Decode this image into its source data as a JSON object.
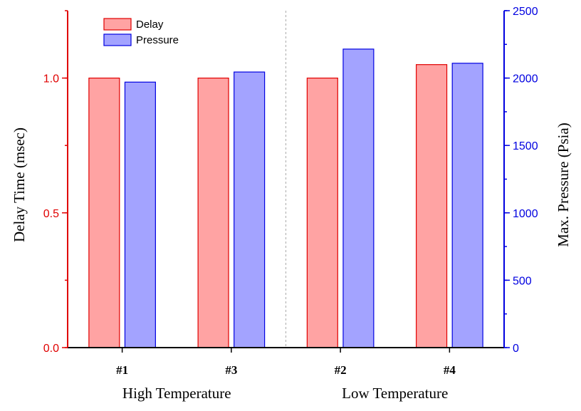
{
  "chart_data": {
    "type": "bar",
    "categories": [
      "#1",
      "#3",
      "#2",
      "#4"
    ],
    "groups": [
      {
        "label": "High Temperature",
        "categories": [
          "#1",
          "#3"
        ]
      },
      {
        "label": "Low Temperature",
        "categories": [
          "#2",
          "#4"
        ]
      }
    ],
    "series": [
      {
        "name": "Delay",
        "axis": "left",
        "values": [
          1.0,
          1.0,
          1.0,
          1.05
        ],
        "fill": "#ffa3a3",
        "stroke": "#e00000"
      },
      {
        "name": "Pressure",
        "axis": "right",
        "values": [
          1970,
          2045,
          2215,
          2110
        ],
        "fill": "#a3a3ff",
        "stroke": "#0000e0"
      }
    ],
    "left_axis": {
      "label": "Delay Time (msec)",
      "ylim": [
        0,
        1.25
      ],
      "ticks": [
        "0.0",
        "0.5",
        "1.0"
      ],
      "tick_values": [
        0,
        0.5,
        1.0
      ],
      "color": "#e00000"
    },
    "right_axis": {
      "label": "Max. Pressure (Psia)",
      "ylim": [
        0,
        2500
      ],
      "ticks": [
        "0",
        "500",
        "1000",
        "1500",
        "2000",
        "2500"
      ],
      "tick_values": [
        0,
        500,
        1000,
        1500,
        2000,
        2500
      ],
      "color": "#0000e0"
    },
    "legend": {
      "position": "top-left"
    },
    "grid": false
  }
}
